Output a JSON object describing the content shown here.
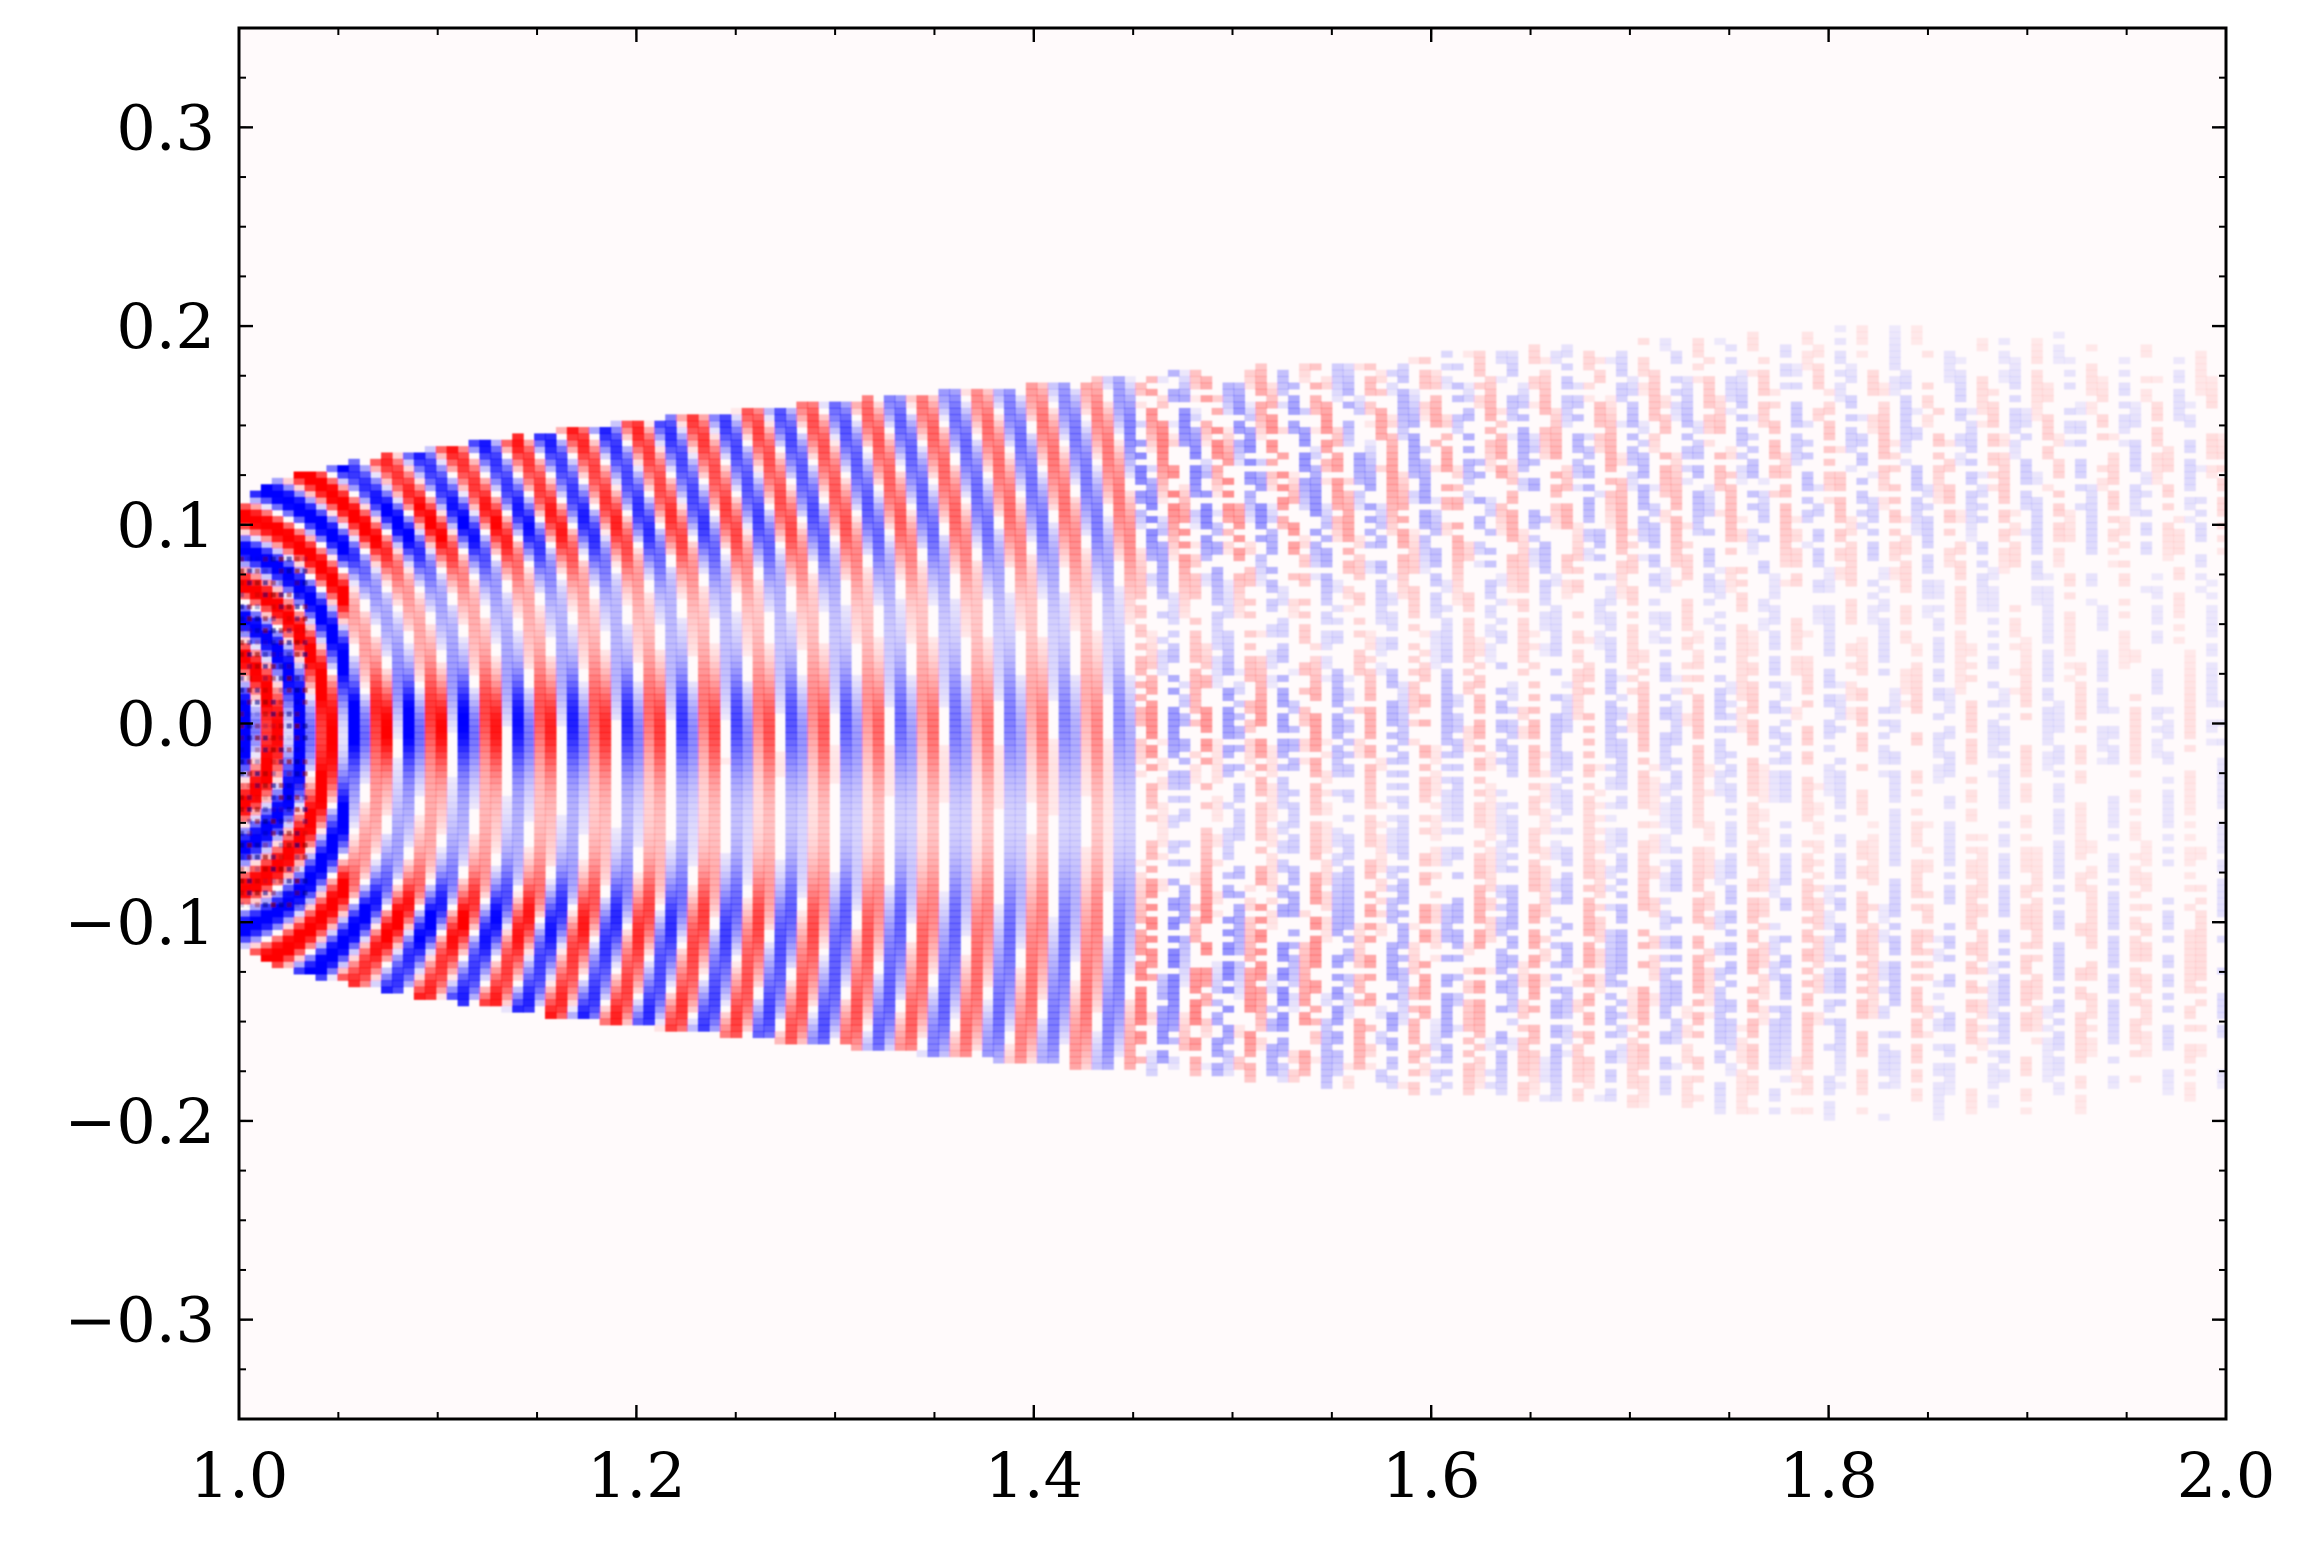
{
  "chart_data": {
    "type": "heatmap",
    "title": "",
    "xlabel": "",
    "ylabel": "",
    "xlim": [
      1.0,
      2.0
    ],
    "ylim": [
      -0.35,
      0.35
    ],
    "x_ticks": [
      1.0,
      1.2,
      1.4,
      1.6,
      1.8,
      2.0
    ],
    "x_tick_labels": [
      "1.0",
      "1.2",
      "1.4",
      "1.6",
      "1.8",
      "2.0"
    ],
    "y_ticks": [
      0.3,
      0.2,
      0.1,
      0.0,
      -0.1,
      -0.2,
      -0.3
    ],
    "y_tick_labels": [
      "0.3",
      "0.2",
      "0.1",
      "0.0",
      "−0.1",
      "−0.2",
      "−0.3"
    ],
    "x_minor_step": 0.05,
    "y_minor_step": 0.025,
    "grid": false,
    "colormap": "bwr",
    "colors": {
      "positive": "#ff0000",
      "negative": "#0000ff",
      "background": "#fffafb"
    },
    "description_of_field": {
      "source_x": 1.0,
      "source_y_range": [
        -0.1,
        0.1
      ],
      "upper_envelope_edge": [
        [
          1.0,
          0.1
        ],
        [
          1.2,
          0.16
        ],
        [
          1.4,
          0.18
        ],
        [
          1.55,
          0.195
        ],
        [
          1.75,
          0.21
        ],
        [
          1.86,
          0.22
        ]
      ],
      "lower_envelope_edge": [
        [
          1.0,
          -0.1
        ],
        [
          1.2,
          -0.16
        ],
        [
          1.4,
          -0.18
        ],
        [
          1.55,
          -0.195
        ],
        [
          1.75,
          -0.21
        ],
        [
          1.86,
          -0.22
        ]
      ],
      "bands_y": [
        0.15,
        0.1,
        0.0,
        -0.1,
        -0.15
      ]
    }
  }
}
